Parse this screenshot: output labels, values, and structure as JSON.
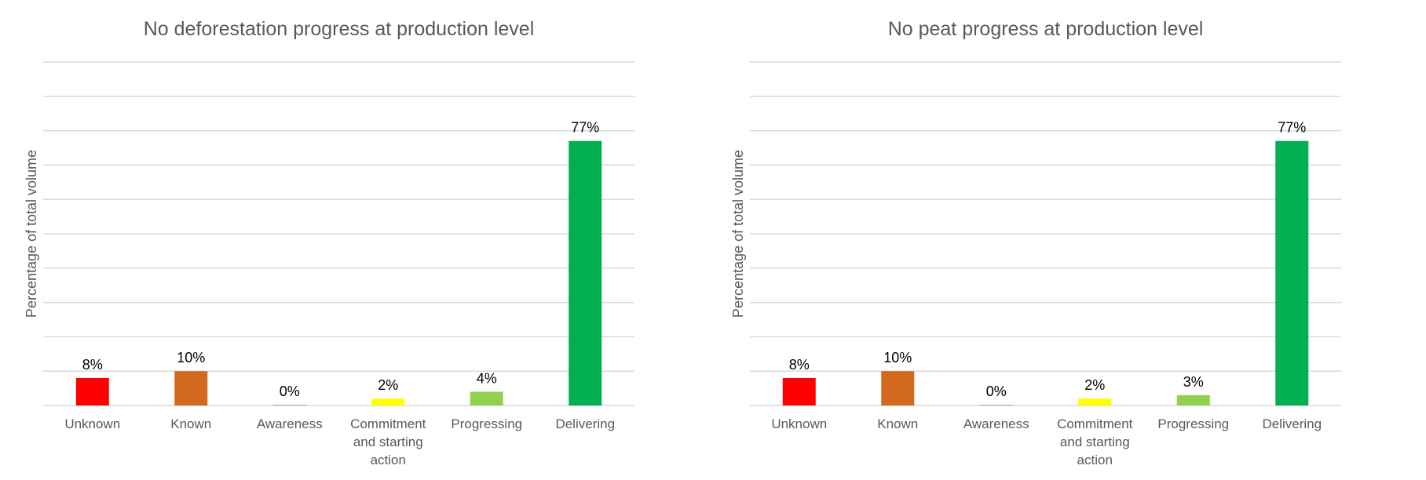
{
  "chart_data": [
    {
      "type": "bar",
      "title": "No deforestation progress at production level",
      "xlabel": "",
      "ylabel": "Percentage of total volume",
      "categories": [
        "Unknown",
        "Known",
        "Awareness",
        "Commitment and starting action",
        "Progressing",
        "Delivering"
      ],
      "category_lines": [
        [
          "Unknown"
        ],
        [
          "Known"
        ],
        [
          "Awareness"
        ],
        [
          "Commitment",
          "and starting",
          "action"
        ],
        [
          "Progressing"
        ],
        [
          "Delivering"
        ]
      ],
      "values": [
        8,
        10,
        0,
        2,
        4,
        77
      ],
      "data_labels": [
        "8%",
        "10%",
        "0%",
        "2%",
        "4%",
        "77%"
      ],
      "colors": [
        "#ff0000",
        "#d2691e",
        "#a6a6a6",
        "#ffff00",
        "#92d050",
        "#00b050"
      ],
      "ylim": [
        0,
        100
      ],
      "gridlines": true,
      "legend": "none"
    },
    {
      "type": "bar",
      "title": "No peat progress at production level",
      "xlabel": "",
      "ylabel": "Percentage of total volume",
      "categories": [
        "Unknown",
        "Known",
        "Awareness",
        "Commitment and starting action",
        "Progressing",
        "Delivering"
      ],
      "category_lines": [
        [
          "Unknown"
        ],
        [
          "Known"
        ],
        [
          "Awareness"
        ],
        [
          "Commitment",
          "and starting",
          "action"
        ],
        [
          "Progressing"
        ],
        [
          "Delivering"
        ]
      ],
      "values": [
        8,
        10,
        0,
        2,
        3,
        77
      ],
      "data_labels": [
        "8%",
        "10%",
        "0%",
        "2%",
        "3%",
        "77%"
      ],
      "colors": [
        "#ff0000",
        "#d2691e",
        "#a6a6a6",
        "#ffff00",
        "#92d050",
        "#00b050"
      ],
      "ylim": [
        0,
        100
      ],
      "gridlines": true,
      "legend": "none"
    }
  ]
}
